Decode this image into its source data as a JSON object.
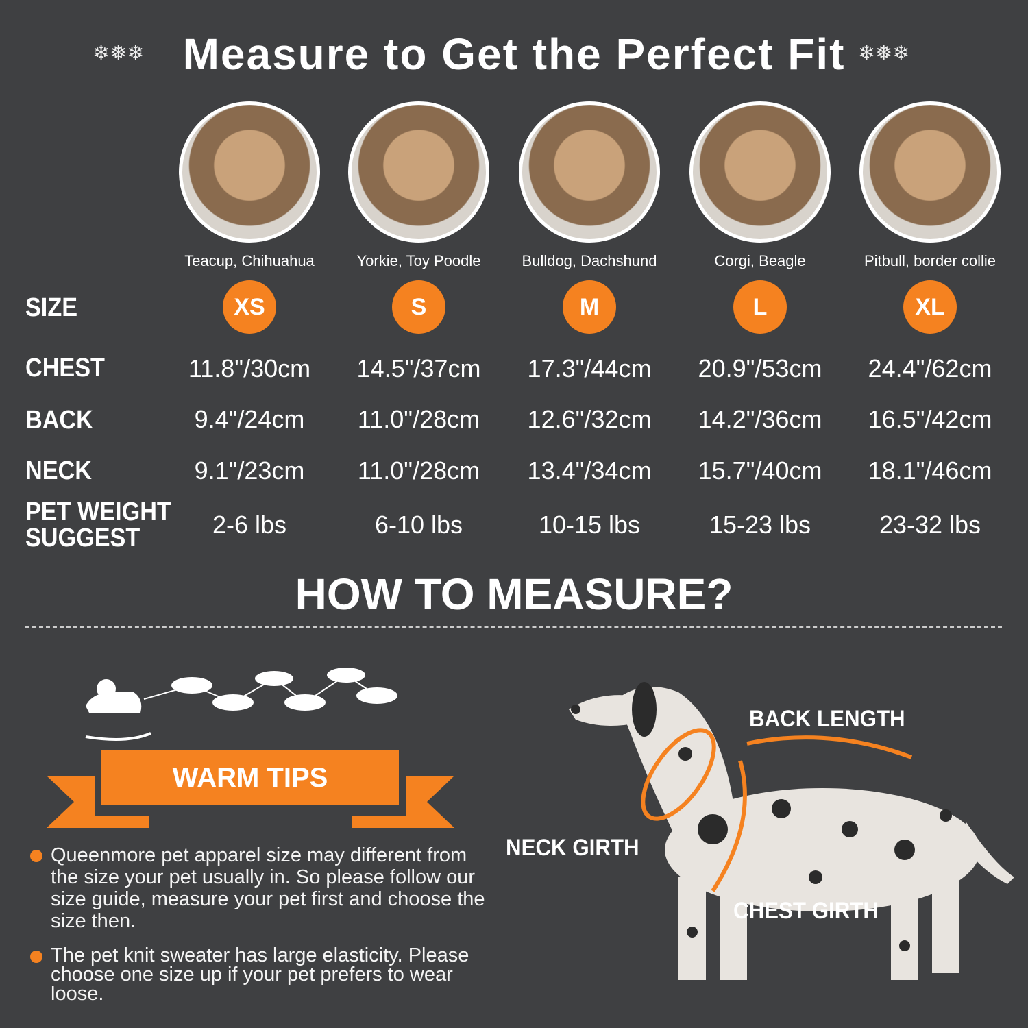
{
  "title": "Measure to Get the Perfect Fit",
  "colors": {
    "background": "#3f4042",
    "accent": "#f58220",
    "text": "#ffffff"
  },
  "decor_icons": [
    "snowflake-icon",
    "reindeer-sleigh-icon",
    "dalmatian-illustration"
  ],
  "breeds": [
    "Teacup, Chihuahua",
    "Yorkie, Toy Poodle",
    "Bulldog, Dachshund",
    "Corgi, Beagle",
    "Pitbull, border collie"
  ],
  "rows": {
    "size": {
      "label": "SIZE",
      "values": [
        "XS",
        "S",
        "M",
        "L",
        "XL"
      ]
    },
    "chest": {
      "label": "CHEST",
      "values": [
        "11.8\"/30cm",
        "14.5\"/37cm",
        "17.3\"/44cm",
        "20.9\"/53cm",
        "24.4\"/62cm"
      ]
    },
    "back": {
      "label": "BACK",
      "values": [
        "9.4\"/24cm",
        "11.0\"/28cm",
        "12.6\"/32cm",
        "14.2\"/36cm",
        "16.5\"/42cm"
      ]
    },
    "neck": {
      "label": "NECK",
      "values": [
        "9.1\"/23cm",
        "11.0\"/28cm",
        "13.4\"/34cm",
        "15.7\"/40cm",
        "18.1\"/46cm"
      ]
    },
    "weight": {
      "label_line1": "PET WEIGHT",
      "label_line2": "SUGGEST",
      "values": [
        "2-6 lbs",
        "6-10 lbs",
        "10-15 lbs",
        "15-23 lbs",
        "23-32 lbs"
      ]
    }
  },
  "how_to": "HOW TO MEASURE?",
  "warm_tips": {
    "title": "WARM TIPS",
    "items": [
      "Queenmore pet apparel size may different from the size your pet usually in. So please follow our size guide, measure your pet first and choose the size then.",
      "The pet knit sweater has large elasticity. Please choose one size up if your pet prefers to wear loose."
    ]
  },
  "diagram": {
    "back": "BACK LENGTH",
    "neck": "NECK GIRTH",
    "chest": "CHEST GIRTH"
  }
}
